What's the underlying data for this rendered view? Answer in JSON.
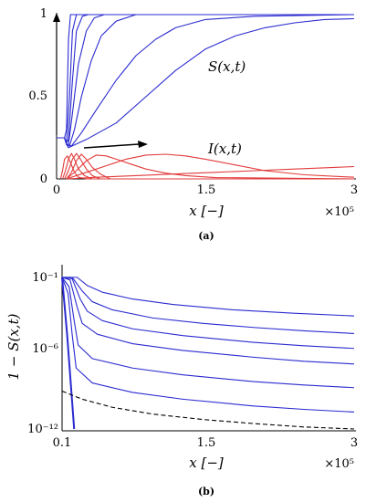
{
  "chart_data": [
    {
      "type": "line",
      "caption": "(a)",
      "xlabel": "x [−]",
      "x_scale_label": "×10⁵",
      "xlim": [
        0,
        3
      ],
      "ylim": [
        0,
        1
      ],
      "x_ticks": [
        "0",
        "1.5",
        "3"
      ],
      "y_ticks": [
        "0",
        "0.5",
        "1"
      ],
      "annotations": [
        "S(x,t)",
        "I(x,t)"
      ],
      "colors": {
        "S": "#2a2ad0",
        "I": "#e23a3a"
      },
      "series": [
        {
          "group": "S",
          "x": [
            0,
            0.05,
            0.08,
            0.1,
            0.12,
            0.14,
            0.16,
            0.2,
            3
          ],
          "y": [
            0.25,
            0.25,
            0.25,
            0.3,
            0.85,
            1.0,
            1.0,
            1.0,
            1.0
          ]
        },
        {
          "group": "S",
          "x": [
            0,
            0.08,
            0.1,
            0.13,
            0.16,
            0.2,
            0.25,
            3
          ],
          "y": [
            0.25,
            0.25,
            0.22,
            0.5,
            0.9,
            1.0,
            1.0,
            1.0
          ]
        },
        {
          "group": "S",
          "x": [
            0,
            0.08,
            0.1,
            0.12,
            0.16,
            0.2,
            0.26,
            0.32,
            3
          ],
          "y": [
            0.25,
            0.25,
            0.22,
            0.24,
            0.6,
            0.9,
            0.99,
            1.0,
            1.0
          ]
        },
        {
          "group": "S",
          "x": [
            0,
            0.08,
            0.1,
            0.12,
            0.16,
            0.22,
            0.3,
            0.38,
            0.48,
            3
          ],
          "y": [
            0.25,
            0.25,
            0.21,
            0.21,
            0.4,
            0.7,
            0.9,
            0.98,
            1.0,
            1.0
          ]
        },
        {
          "group": "S",
          "x": [
            0,
            0.08,
            0.1,
            0.13,
            0.18,
            0.25,
            0.35,
            0.45,
            0.6,
            0.8,
            3
          ],
          "y": [
            0.25,
            0.25,
            0.21,
            0.2,
            0.3,
            0.5,
            0.72,
            0.87,
            0.96,
            1.0,
            1.0
          ]
        },
        {
          "group": "S",
          "x": [
            0,
            0.08,
            0.1,
            0.15,
            0.25,
            0.4,
            0.6,
            0.8,
            1.0,
            1.2,
            1.5,
            2.0,
            3
          ],
          "y": [
            0.25,
            0.25,
            0.21,
            0.2,
            0.28,
            0.42,
            0.6,
            0.75,
            0.85,
            0.92,
            0.97,
            0.99,
            1.0
          ]
        },
        {
          "group": "S",
          "x": [
            0,
            0.08,
            0.1,
            0.12,
            0.3,
            0.6,
            0.9,
            1.2,
            1.5,
            1.8,
            2.1,
            2.4,
            2.7,
            3.0
          ],
          "y": [
            0.25,
            0.25,
            0.21,
            0.19,
            0.24,
            0.34,
            0.5,
            0.66,
            0.79,
            0.87,
            0.92,
            0.95,
            0.97,
            0.975
          ]
        },
        {
          "group": "I",
          "x": [
            0.04,
            0.06,
            0.08,
            0.11,
            0.14,
            0.18,
            0.22,
            0.3,
            3
          ],
          "y": [
            0.0,
            0.05,
            0.12,
            0.14,
            0.1,
            0.04,
            0.01,
            0.0,
            0.0
          ]
        },
        {
          "group": "I",
          "x": [
            0.06,
            0.09,
            0.12,
            0.15,
            0.18,
            0.22,
            0.28,
            0.36,
            3
          ],
          "y": [
            0.0,
            0.05,
            0.12,
            0.155,
            0.12,
            0.06,
            0.02,
            0.0,
            0.0
          ]
        },
        {
          "group": "I",
          "x": [
            0.08,
            0.12,
            0.16,
            0.2,
            0.24,
            0.3,
            0.36,
            0.44,
            3
          ],
          "y": [
            0.0,
            0.05,
            0.12,
            0.155,
            0.12,
            0.06,
            0.02,
            0.0,
            0.0
          ]
        },
        {
          "group": "I",
          "x": [
            0.1,
            0.15,
            0.2,
            0.25,
            0.3,
            0.36,
            0.44,
            0.54,
            3
          ],
          "y": [
            0.0,
            0.04,
            0.11,
            0.15,
            0.12,
            0.07,
            0.03,
            0.0,
            0.0
          ]
        },
        {
          "group": "I",
          "x": [
            0.1,
            0.2,
            0.3,
            0.4,
            0.5,
            0.6,
            0.75,
            0.9,
            1.1,
            1.3,
            1.6,
            3
          ],
          "y": [
            0.0,
            0.05,
            0.11,
            0.145,
            0.14,
            0.12,
            0.09,
            0.06,
            0.035,
            0.02,
            0.008,
            0.0
          ]
        },
        {
          "group": "I",
          "x": [
            0.1,
            0.3,
            0.5,
            0.7,
            0.9,
            1.1,
            1.3,
            1.5,
            1.8,
            2.1,
            2.5,
            3.0
          ],
          "y": [
            0.0,
            0.04,
            0.08,
            0.12,
            0.145,
            0.15,
            0.14,
            0.12,
            0.085,
            0.05,
            0.025,
            0.01
          ]
        },
        {
          "group": "I",
          "x": [
            0.1,
            0.4,
            0.8,
            1.2,
            1.6,
            2.0,
            2.4,
            2.8,
            3.0
          ],
          "y": [
            0.0,
            0.01,
            0.02,
            0.03,
            0.04,
            0.05,
            0.06,
            0.07,
            0.075
          ]
        }
      ]
    },
    {
      "type": "line",
      "caption": "(b)",
      "xlabel": "x [−]",
      "ylabel": "1 − S(x,t)",
      "x_scale_label": "×10⁵",
      "xlim": [
        0.1,
        3
      ],
      "y_scale": "log",
      "ylim": [
        1e-12,
        1
      ],
      "x_ticks": [
        "0.1",
        "1.5",
        "3"
      ],
      "y_ticks": [
        "10⁻¹²",
        "10⁻⁶",
        "10⁻¹"
      ],
      "colors": {
        "model": "#2a2ad0",
        "reference": "#000000"
      },
      "series": [
        {
          "style": "solid",
          "group": "model",
          "x": [
            0.1,
            0.15,
            0.2,
            0.22
          ],
          "logy": [
            -0.8,
            -5.0,
            -10.0,
            -12.0
          ]
        },
        {
          "style": "solid",
          "group": "model",
          "x": [
            0.1,
            0.25,
            0.35,
            0.5,
            0.8,
            1.2,
            1.8,
            2.4,
            3.0
          ],
          "logy": [
            -0.8,
            -0.8,
            -1.4,
            -1.9,
            -2.4,
            -2.8,
            -3.2,
            -3.45,
            -3.65
          ]
        },
        {
          "style": "solid",
          "group": "model",
          "x": [
            0.1,
            0.2,
            0.3,
            0.4,
            0.6,
            1.0,
            1.5,
            2.0,
            2.5,
            3.0
          ],
          "logy": [
            -0.8,
            -0.8,
            -1.8,
            -2.6,
            -3.2,
            -3.8,
            -4.2,
            -4.5,
            -4.75,
            -4.95
          ]
        },
        {
          "style": "solid",
          "group": "model",
          "x": [
            0.1,
            0.2,
            0.28,
            0.35,
            0.5,
            0.8,
            1.3,
            2.0,
            2.5,
            3.0
          ],
          "logy": [
            -0.8,
            -0.9,
            -2.4,
            -3.3,
            -4.0,
            -4.6,
            -5.1,
            -5.6,
            -5.85,
            -6.05
          ]
        },
        {
          "style": "solid",
          "group": "model",
          "x": [
            0.1,
            0.18,
            0.25,
            0.3,
            0.45,
            0.8,
            1.3,
            2.0,
            2.5,
            3.0
          ],
          "logy": [
            -0.8,
            -1.0,
            -3.0,
            -4.2,
            -5.0,
            -5.7,
            -6.2,
            -6.7,
            -7.0,
            -7.2
          ]
        },
        {
          "style": "solid",
          "group": "model",
          "x": [
            0.1,
            0.17,
            0.22,
            0.26,
            0.4,
            0.8,
            1.3,
            2.0,
            2.5,
            3.0
          ],
          "logy": [
            -0.8,
            -1.5,
            -4.0,
            -5.8,
            -6.8,
            -7.5,
            -8.0,
            -8.5,
            -8.75,
            -8.95
          ]
        },
        {
          "style": "solid",
          "group": "model",
          "x": [
            0.1,
            0.16,
            0.2,
            0.24,
            0.4,
            0.8,
            1.3,
            2.0,
            2.5,
            3.0
          ],
          "logy": [
            -0.8,
            -2.0,
            -5.0,
            -7.5,
            -8.6,
            -9.3,
            -9.8,
            -10.3,
            -10.55,
            -10.75
          ]
        },
        {
          "style": "dashed",
          "group": "reference",
          "x": [
            0.1,
            0.3,
            0.6,
            1.0,
            1.5,
            2.0,
            2.5,
            3.0
          ],
          "logy": [
            -9.2,
            -9.8,
            -10.4,
            -10.9,
            -11.3,
            -11.6,
            -11.85,
            -12.0
          ]
        }
      ]
    }
  ]
}
